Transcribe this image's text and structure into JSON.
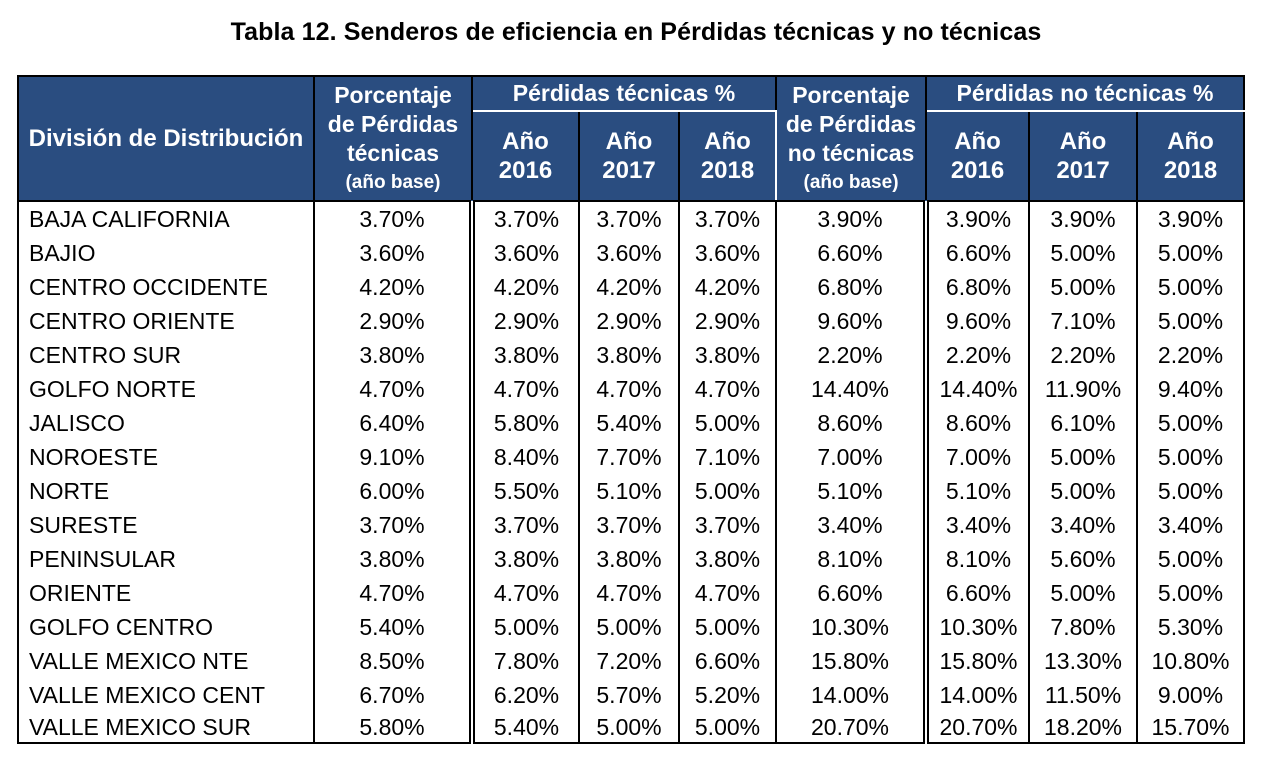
{
  "title": "Tabla 12. Senderos de eficiencia en Pérdidas técnicas y no técnicas",
  "header": {
    "division": "División de Distribución",
    "pct_tec": [
      "Porcentaje",
      "de Pérdidas",
      "técnicas"
    ],
    "pct_tec_sub": "(año base)",
    "grp_tec": "Pérdidas técnicas %",
    "pct_notec": [
      "Porcentaje",
      "de Pérdidas",
      "no técnicas"
    ],
    "pct_notec_sub": "(año base)",
    "grp_notec": "Pérdidas no técnicas %",
    "years": [
      [
        "Año",
        "2016"
      ],
      [
        "Año",
        "2017"
      ],
      [
        "Año",
        "2018"
      ]
    ]
  },
  "rows": [
    [
      "BAJA CALIFORNIA",
      "3.70%",
      "3.70%",
      "3.70%",
      "3.70%",
      "3.90%",
      "3.90%",
      "3.90%",
      "3.90%"
    ],
    [
      "BAJIO",
      "3.60%",
      "3.60%",
      "3.60%",
      "3.60%",
      "6.60%",
      "6.60%",
      "5.00%",
      "5.00%"
    ],
    [
      "CENTRO OCCIDENTE",
      "4.20%",
      "4.20%",
      "4.20%",
      "4.20%",
      "6.80%",
      "6.80%",
      "5.00%",
      "5.00%"
    ],
    [
      "CENTRO ORIENTE",
      "2.90%",
      "2.90%",
      "2.90%",
      "2.90%",
      "9.60%",
      "9.60%",
      "7.10%",
      "5.00%"
    ],
    [
      "CENTRO SUR",
      "3.80%",
      "3.80%",
      "3.80%",
      "3.80%",
      "2.20%",
      "2.20%",
      "2.20%",
      "2.20%"
    ],
    [
      "GOLFO NORTE",
      "4.70%",
      "4.70%",
      "4.70%",
      "4.70%",
      "14.40%",
      "14.40%",
      "11.90%",
      "9.40%"
    ],
    [
      "JALISCO",
      "6.40%",
      "5.80%",
      "5.40%",
      "5.00%",
      "8.60%",
      "8.60%",
      "6.10%",
      "5.00%"
    ],
    [
      "NOROESTE",
      "9.10%",
      "8.40%",
      "7.70%",
      "7.10%",
      "7.00%",
      "7.00%",
      "5.00%",
      "5.00%"
    ],
    [
      "NORTE",
      "6.00%",
      "5.50%",
      "5.10%",
      "5.00%",
      "5.10%",
      "5.10%",
      "5.00%",
      "5.00%"
    ],
    [
      "SURESTE",
      "3.70%",
      "3.70%",
      "3.70%",
      "3.70%",
      "3.40%",
      "3.40%",
      "3.40%",
      "3.40%"
    ],
    [
      "PENINSULAR",
      "3.80%",
      "3.80%",
      "3.80%",
      "3.80%",
      "8.10%",
      "8.10%",
      "5.60%",
      "5.00%"
    ],
    [
      "ORIENTE",
      "4.70%",
      "4.70%",
      "4.70%",
      "4.70%",
      "6.60%",
      "6.60%",
      "5.00%",
      "5.00%"
    ],
    [
      "GOLFO CENTRO",
      "5.40%",
      "5.00%",
      "5.00%",
      "5.00%",
      "10.30%",
      "10.30%",
      "7.80%",
      "5.30%"
    ],
    [
      "VALLE MEXICO NTE",
      "8.50%",
      "7.80%",
      "7.20%",
      "6.60%",
      "15.80%",
      "15.80%",
      "13.30%",
      "10.80%"
    ],
    [
      "VALLE MEXICO CENT",
      "6.70%",
      "6.20%",
      "5.70%",
      "5.20%",
      "14.00%",
      "14.00%",
      "11.50%",
      "9.00%"
    ],
    [
      "VALLE MEXICO SUR",
      "5.80%",
      "5.40%",
      "5.00%",
      "5.00%",
      "20.70%",
      "20.70%",
      "18.20%",
      "15.70%"
    ]
  ]
}
